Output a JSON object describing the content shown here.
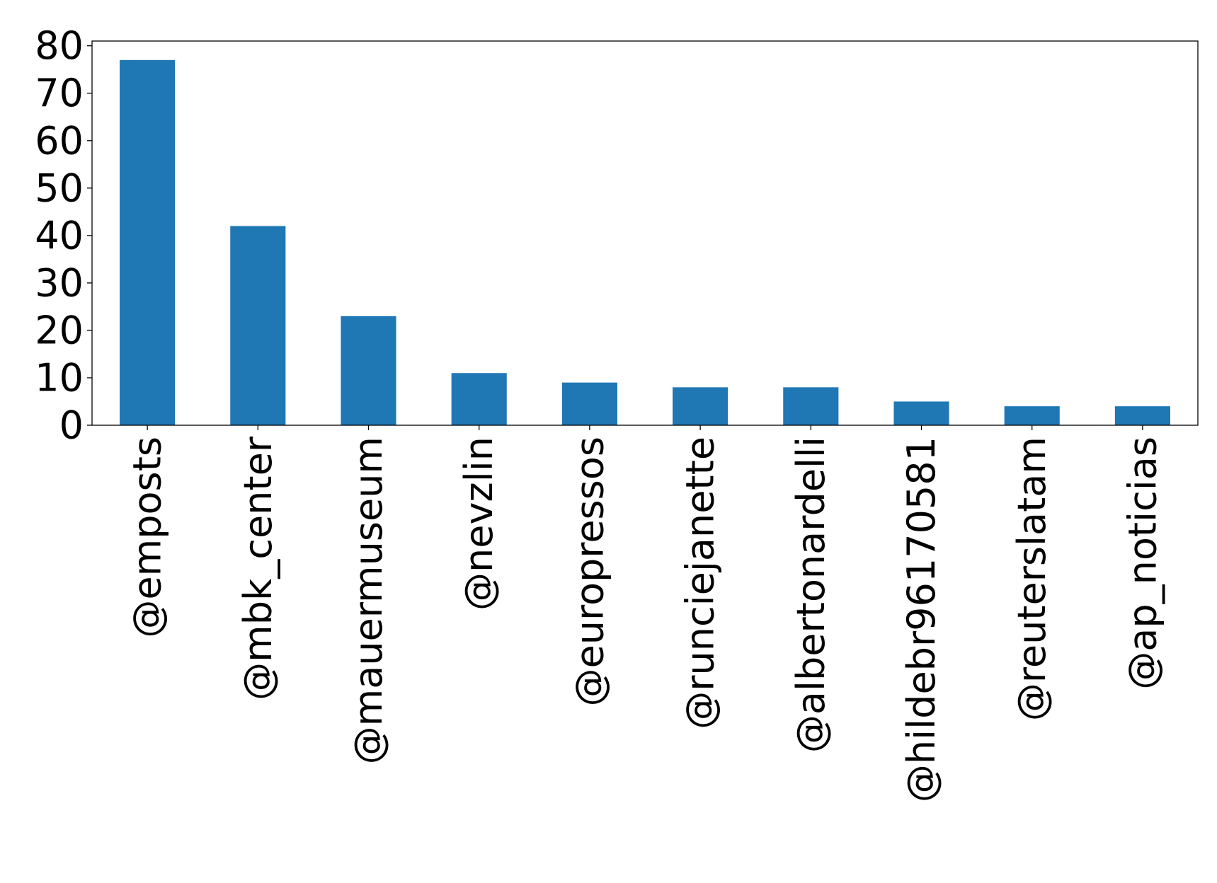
{
  "chart_data": {
    "type": "bar",
    "title": "",
    "xlabel": "",
    "ylabel": "",
    "categories": [
      "@emposts",
      "@mbk_center",
      "@mauermuseum",
      "@nevzlin",
      "@europressos",
      "@runciejanette",
      "@albertonardelli",
      "@hildebr96170581",
      "@reuterslatam",
      "@ap_noticias"
    ],
    "series": [
      {
        "values": [
          77,
          42,
          23,
          11,
          9,
          8,
          8,
          5,
          4,
          4
        ]
      }
    ],
    "ylim": [
      0,
      81
    ],
    "yticks": [
      "0",
      "10",
      "20",
      "30",
      "40",
      "50",
      "60",
      "70",
      "80"
    ],
    "grid": false,
    "legend": "none",
    "bar_color": "#1f77b4",
    "axis_color": "#000000"
  }
}
